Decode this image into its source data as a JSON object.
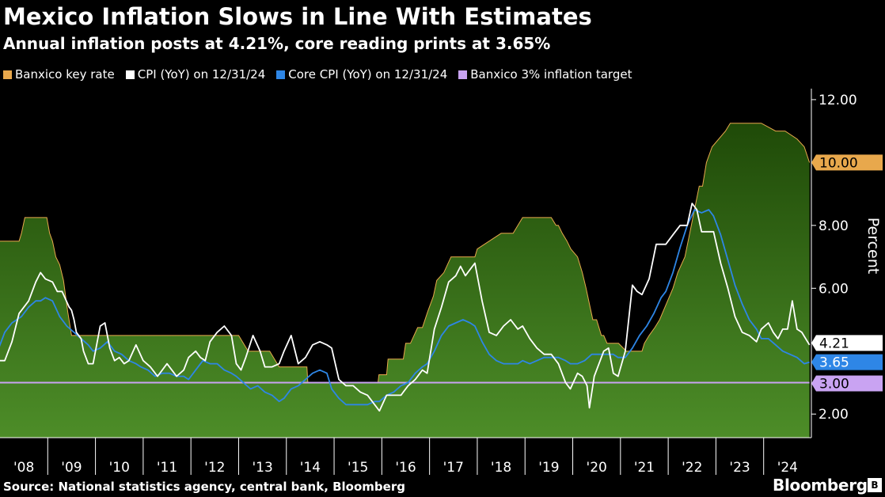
{
  "title": "Mexico Inflation Slows in Line With Estimates",
  "subtitle": "Annual inflation posts at 4.21%, core reading prints at 3.65%",
  "source": "Source: National statistics agency, central bank, Bloomberg",
  "brand": "Bloomberg",
  "chart_data": {
    "type": "area",
    "ylabel": "Percent",
    "ylim": [
      1.25,
      12.35
    ],
    "y_ticks": [
      "2.00",
      "6.00",
      "8.00",
      "12.00"
    ],
    "x_ticks": [
      "'08",
      "'09",
      "'10",
      "'11",
      "'12",
      "'13",
      "'14",
      "'15",
      "'16",
      "'17",
      "'18",
      "'19",
      "'20",
      "'21",
      "'22",
      "'23",
      "'24"
    ],
    "xlim": [
      2008.0,
      2025.0
    ],
    "legend_placement": "top",
    "grid": false,
    "series": [
      {
        "name": "Banxico key rate",
        "type": "area",
        "color": "#3f7d1c",
        "edge_color": "#e8a84c",
        "end_label": "10.00",
        "x": [
          2007.93,
          2008.4,
          2008.45,
          2008.52,
          2008.98,
          2009.04,
          2009.1,
          2009.17,
          2009.25,
          2009.33,
          2009.42,
          2009.5,
          2011.5,
          2011.5,
          2012.0,
          2013.0,
          2013.2,
          2013.65,
          2013.75,
          2013.85,
          2014.0,
          2014.43,
          2014.45,
          2015.0,
          2015.3,
          2015.92,
          2015.94,
          2016.1,
          2016.13,
          2016.45,
          2016.5,
          2016.6,
          2016.75,
          2016.85,
          2016.96,
          2017.08,
          2017.15,
          2017.3,
          2017.45,
          2017.95,
          2018.0,
          2018.25,
          2018.5,
          2018.75,
          2018.95,
          2019.55,
          2019.65,
          2019.7,
          2019.78,
          2019.88,
          2019.96,
          2020.1,
          2020.2,
          2020.28,
          2020.35,
          2020.42,
          2020.5,
          2020.6,
          2020.65,
          2020.72,
          2020.8,
          2020.88,
          2020.96,
          2021.12,
          2021.45,
          2021.5,
          2021.6,
          2021.72,
          2021.82,
          2021.96,
          2022.1,
          2022.2,
          2022.35,
          2022.45,
          2022.55,
          2022.65,
          2022.72,
          2022.8,
          2022.92,
          2023.2,
          2023.3,
          2023.95,
          2024.25,
          2024.45,
          2024.7,
          2024.85,
          2024.96
        ],
        "y": [
          7.5,
          7.5,
          7.75,
          8.25,
          8.25,
          7.75,
          7.5,
          7.0,
          6.75,
          6.25,
          5.25,
          4.5,
          4.5,
          4.5,
          4.5,
          4.5,
          4.0,
          4.0,
          3.75,
          3.5,
          3.5,
          3.5,
          3.0,
          3.0,
          3.0,
          3.0,
          3.25,
          3.25,
          3.75,
          3.75,
          4.25,
          4.25,
          4.75,
          4.75,
          5.25,
          5.75,
          6.25,
          6.5,
          7.0,
          7.0,
          7.25,
          7.5,
          7.75,
          7.75,
          8.25,
          8.25,
          8.0,
          8.0,
          7.75,
          7.5,
          7.25,
          7.0,
          6.5,
          6.0,
          5.5,
          5.0,
          5.0,
          4.5,
          4.5,
          4.25,
          4.25,
          4.25,
          4.25,
          4.0,
          4.0,
          4.25,
          4.5,
          4.75,
          5.0,
          5.5,
          6.0,
          6.5,
          7.0,
          7.75,
          8.5,
          9.25,
          9.25,
          10.0,
          10.5,
          11.0,
          11.25,
          11.25,
          11.0,
          11.0,
          10.75,
          10.5,
          10.0
        ]
      },
      {
        "name": "CPI (YoY) on 12/31/24",
        "type": "line",
        "color": "#ffffff",
        "end_label": "4.21",
        "x": [
          2007.95,
          2008.1,
          2008.25,
          2008.4,
          2008.6,
          2008.75,
          2008.85,
          2008.95,
          2009.1,
          2009.2,
          2009.3,
          2009.45,
          2009.5,
          2009.55,
          2009.6,
          2009.7,
          2009.75,
          2009.85,
          2009.95,
          2010.1,
          2010.2,
          2010.3,
          2010.4,
          2010.5,
          2010.6,
          2010.7,
          2010.85,
          2011.0,
          2011.15,
          2011.3,
          2011.4,
          2011.5,
          2011.6,
          2011.7,
          2011.85,
          2011.95,
          2012.1,
          2012.2,
          2012.3,
          2012.4,
          2012.55,
          2012.7,
          2012.85,
          2012.95,
          2013.05,
          2013.15,
          2013.3,
          2013.45,
          2013.55,
          2013.7,
          2013.85,
          2013.95,
          2014.1,
          2014.25,
          2014.4,
          2014.55,
          2014.7,
          2014.85,
          2014.95,
          2015.1,
          2015.25,
          2015.4,
          2015.55,
          2015.7,
          2015.85,
          2015.95,
          2016.1,
          2016.25,
          2016.4,
          2016.55,
          2016.7,
          2016.85,
          2016.95,
          2017.1,
          2017.25,
          2017.4,
          2017.55,
          2017.65,
          2017.75,
          2017.85,
          2017.95,
          2018.1,
          2018.25,
          2018.4,
          2018.55,
          2018.7,
          2018.85,
          2018.95,
          2019.1,
          2019.25,
          2019.4,
          2019.55,
          2019.7,
          2019.85,
          2019.95,
          2020.1,
          2020.2,
          2020.3,
          2020.35,
          2020.45,
          2020.55,
          2020.65,
          2020.75,
          2020.85,
          2020.95,
          2021.1,
          2021.25,
          2021.35,
          2021.45,
          2021.6,
          2021.75,
          2021.85,
          2021.95,
          2022.1,
          2022.25,
          2022.4,
          2022.5,
          2022.6,
          2022.7,
          2022.8,
          2022.95,
          2023.1,
          2023.25,
          2023.4,
          2023.55,
          2023.7,
          2023.85,
          2023.95,
          2024.1,
          2024.2,
          2024.3,
          2024.4,
          2024.5,
          2024.6,
          2024.7,
          2024.8,
          2024.96
        ],
        "y": [
          3.7,
          3.7,
          4.3,
          5.2,
          5.6,
          6.2,
          6.5,
          6.3,
          6.2,
          5.9,
          5.9,
          5.4,
          5.3,
          5.0,
          4.6,
          4.4,
          4.0,
          3.6,
          3.6,
          4.8,
          4.9,
          4.1,
          3.7,
          3.8,
          3.6,
          3.7,
          4.2,
          3.7,
          3.5,
          3.2,
          3.4,
          3.6,
          3.4,
          3.2,
          3.4,
          3.8,
          4.0,
          3.8,
          3.7,
          4.3,
          4.6,
          4.8,
          4.5,
          3.6,
          3.4,
          3.8,
          4.5,
          4.0,
          3.5,
          3.5,
          3.6,
          4.0,
          4.5,
          3.6,
          3.8,
          4.2,
          4.3,
          4.2,
          4.1,
          3.1,
          2.9,
          2.9,
          2.7,
          2.6,
          2.3,
          2.1,
          2.6,
          2.6,
          2.6,
          2.9,
          3.1,
          3.4,
          3.3,
          4.7,
          5.4,
          6.2,
          6.4,
          6.7,
          6.4,
          6.6,
          6.8,
          5.6,
          4.6,
          4.5,
          4.8,
          5.0,
          4.7,
          4.8,
          4.4,
          4.1,
          3.9,
          3.9,
          3.6,
          3.0,
          2.8,
          3.3,
          3.2,
          2.9,
          2.2,
          3.2,
          3.6,
          4.0,
          4.1,
          3.3,
          3.2,
          4.0,
          6.1,
          5.9,
          5.8,
          6.3,
          7.4,
          7.4,
          7.4,
          7.7,
          8.0,
          8.0,
          8.7,
          8.5,
          7.8,
          7.8,
          7.8,
          6.8,
          6.0,
          5.1,
          4.6,
          4.5,
          4.3,
          4.7,
          4.9,
          4.6,
          4.4,
          4.7,
          4.7,
          5.6,
          4.7,
          4.6,
          4.2
        ],
        "note": "values traced from the plotted white line"
      },
      {
        "name": "Core CPI (YoY) on 12/31/24",
        "type": "line",
        "color": "#2e86e6",
        "end_label": "3.65",
        "x": [
          2007.95,
          2008.1,
          2008.25,
          2008.45,
          2008.6,
          2008.75,
          2008.85,
          2008.95,
          2009.1,
          2009.25,
          2009.4,
          2009.55,
          2009.7,
          2009.85,
          2009.95,
          2010.1,
          2010.25,
          2010.4,
          2010.55,
          2010.7,
          2010.85,
          2010.95,
          2011.1,
          2011.25,
          2011.4,
          2011.55,
          2011.7,
          2011.85,
          2011.95,
          2012.1,
          2012.25,
          2012.4,
          2012.55,
          2012.7,
          2012.85,
          2012.95,
          2013.1,
          2013.25,
          2013.4,
          2013.55,
          2013.7,
          2013.85,
          2013.95,
          2014.1,
          2014.25,
          2014.4,
          2014.55,
          2014.7,
          2014.85,
          2014.95,
          2015.1,
          2015.25,
          2015.4,
          2015.55,
          2015.7,
          2015.85,
          2015.95,
          2016.1,
          2016.25,
          2016.4,
          2016.55,
          2016.7,
          2016.85,
          2016.95,
          2017.1,
          2017.25,
          2017.4,
          2017.55,
          2017.7,
          2017.85,
          2017.95,
          2018.1,
          2018.25,
          2018.4,
          2018.55,
          2018.7,
          2018.85,
          2018.95,
          2019.1,
          2019.25,
          2019.4,
          2019.55,
          2019.7,
          2019.85,
          2019.95,
          2020.1,
          2020.25,
          2020.4,
          2020.55,
          2020.7,
          2020.85,
          2020.95,
          2021.1,
          2021.25,
          2021.4,
          2021.55,
          2021.7,
          2021.85,
          2021.95,
          2022.1,
          2022.25,
          2022.4,
          2022.55,
          2022.7,
          2022.85,
          2022.95,
          2023.1,
          2023.25,
          2023.4,
          2023.55,
          2023.7,
          2023.85,
          2023.95,
          2024.1,
          2024.25,
          2024.4,
          2024.55,
          2024.7,
          2024.85,
          2024.96
        ],
        "y": [
          4.0,
          4.6,
          4.9,
          5.1,
          5.4,
          5.6,
          5.6,
          5.7,
          5.6,
          5.1,
          4.8,
          4.6,
          4.4,
          4.2,
          4.0,
          4.1,
          4.3,
          4.0,
          3.9,
          3.7,
          3.6,
          3.5,
          3.4,
          3.2,
          3.3,
          3.3,
          3.2,
          3.2,
          3.1,
          3.4,
          3.7,
          3.6,
          3.6,
          3.4,
          3.3,
          3.2,
          3.0,
          2.8,
          2.9,
          2.7,
          2.6,
          2.4,
          2.5,
          2.8,
          2.9,
          3.1,
          3.3,
          3.4,
          3.3,
          2.8,
          2.5,
          2.3,
          2.3,
          2.3,
          2.3,
          2.4,
          2.4,
          2.6,
          2.7,
          2.9,
          3.0,
          3.3,
          3.5,
          3.6,
          4.0,
          4.5,
          4.8,
          4.9,
          5.0,
          4.9,
          4.8,
          4.3,
          3.9,
          3.7,
          3.6,
          3.6,
          3.6,
          3.7,
          3.6,
          3.7,
          3.8,
          3.8,
          3.8,
          3.7,
          3.6,
          3.6,
          3.7,
          3.9,
          3.9,
          3.9,
          3.9,
          3.8,
          3.8,
          4.1,
          4.5,
          4.8,
          5.2,
          5.7,
          5.9,
          6.5,
          7.3,
          8.0,
          8.5,
          8.4,
          8.5,
          8.3,
          7.7,
          6.9,
          6.1,
          5.5,
          5.0,
          4.7,
          4.4,
          4.4,
          4.2,
          4.0,
          3.9,
          3.8,
          3.6,
          3.65
        ]
      },
      {
        "name": "Banxico 3% inflation target",
        "type": "line",
        "color": "#c9a3f2",
        "end_label": "3.00",
        "x": [
          2007.95,
          2024.96
        ],
        "y": [
          3.0,
          3.0
        ]
      }
    ]
  },
  "colors": {
    "rate_legend": "#e8a84c",
    "cpi_legend": "#ffffff",
    "core_legend": "#2e86e6",
    "target_legend": "#c9a3f2",
    "area_top": "#2c5a0e",
    "area_bottom": "#4a8a26"
  }
}
